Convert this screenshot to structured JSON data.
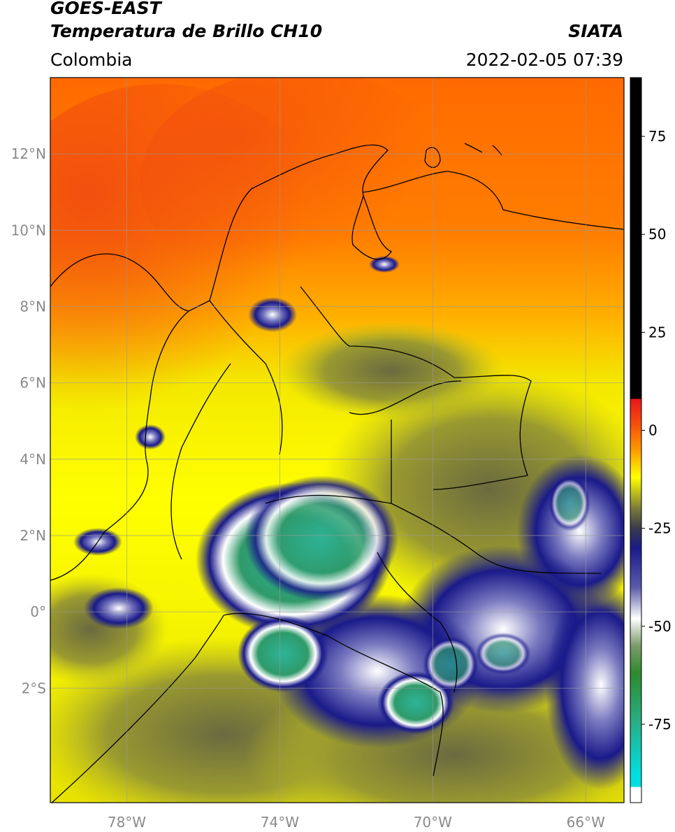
{
  "header": {
    "satellite": "GOES-EAST",
    "product": "Temperatura de Brillo CH10",
    "organization": "SIATA",
    "region": "Colombia",
    "datetime": "2022-02-05 07:39"
  },
  "map": {
    "lon_range": [
      -80,
      -65
    ],
    "lat_range": [
      -5,
      14
    ],
    "gridlines": true,
    "lat_ticks": [
      {
        "value": 12,
        "label": "12°N"
      },
      {
        "value": 10,
        "label": "10°N"
      },
      {
        "value": 8,
        "label": "8°N"
      },
      {
        "value": 6,
        "label": "6°N"
      },
      {
        "value": 4,
        "label": "4°N"
      },
      {
        "value": 2,
        "label": "2°N"
      },
      {
        "value": 0,
        "label": "0°"
      },
      {
        "value": -2,
        "label": "2°S"
      }
    ],
    "lon_ticks": [
      {
        "value": -78,
        "label": "78°W"
      },
      {
        "value": -74,
        "label": "74°W"
      },
      {
        "value": -70,
        "label": "70°W"
      },
      {
        "value": -66,
        "label": "66°W"
      }
    ]
  },
  "colorbar": {
    "range": [
      -95,
      90
    ],
    "ticks": [
      {
        "value": 75,
        "label": "75"
      },
      {
        "value": 50,
        "label": "50"
      },
      {
        "value": 25,
        "label": "25"
      },
      {
        "value": 0,
        "label": "0"
      },
      {
        "value": -25,
        "label": "-25"
      },
      {
        "value": -50,
        "label": "-50"
      },
      {
        "value": -75,
        "label": "-75"
      }
    ],
    "stops": [
      {
        "value": 90,
        "color": "#000000"
      },
      {
        "value": 8,
        "color": "#000000"
      },
      {
        "value": 8,
        "color": "#e8161c"
      },
      {
        "value": 2,
        "color": "#f54a0e"
      },
      {
        "value": -5,
        "color": "#ff9a00"
      },
      {
        "value": -12,
        "color": "#ffff00"
      },
      {
        "value": -20,
        "color": "#7a7a3a"
      },
      {
        "value": -25,
        "color": "#3a3a4a"
      },
      {
        "value": -30,
        "color": "#1a1a8a"
      },
      {
        "value": -40,
        "color": "#5a5aaa"
      },
      {
        "value": -48,
        "color": "#ffffff"
      },
      {
        "value": -55,
        "color": "#7a9a6a"
      },
      {
        "value": -62,
        "color": "#2e8b2e"
      },
      {
        "value": -75,
        "color": "#27b08a"
      },
      {
        "value": -88,
        "color": "#00e0e0"
      },
      {
        "value": -91,
        "color": "#00e0e0"
      },
      {
        "value": -91,
        "color": "#ffffff"
      },
      {
        "value": -95,
        "color": "#ffffff"
      }
    ]
  }
}
